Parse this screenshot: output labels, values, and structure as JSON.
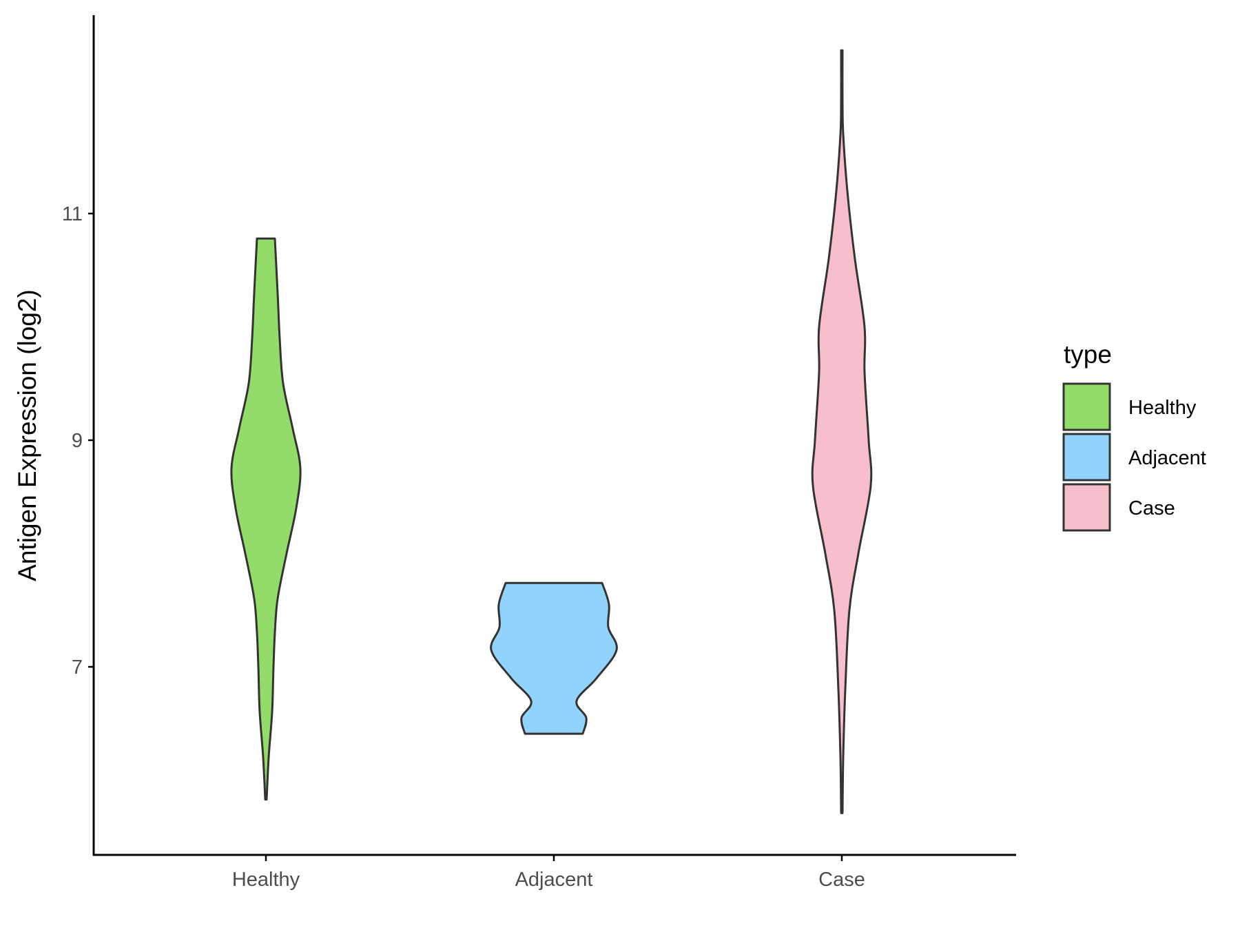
{
  "chart_data": {
    "type": "violin",
    "title": "",
    "xlabel": "",
    "ylabel": "Antigen Expression (log2)",
    "categories": [
      "Healthy",
      "Adjacent",
      "Case"
    ],
    "y_ticks": [
      7,
      9,
      11
    ],
    "ylim": [
      5.5,
      12.9
    ],
    "grid": false,
    "legend": {
      "title": "type",
      "position": "right",
      "entries": [
        "Healthy",
        "Adjacent",
        "Case"
      ]
    },
    "series": [
      {
        "name": "Healthy",
        "color": "#93dc6a",
        "min": 5.83,
        "max": 10.78,
        "profile": [
          [
            5.83,
            0.01
          ],
          [
            6.2,
            0.04
          ],
          [
            6.6,
            0.09
          ],
          [
            7.0,
            0.11
          ],
          [
            7.3,
            0.13
          ],
          [
            7.6,
            0.17
          ],
          [
            8.0,
            0.3
          ],
          [
            8.4,
            0.44
          ],
          [
            8.75,
            0.5
          ],
          [
            9.1,
            0.39
          ],
          [
            9.5,
            0.25
          ],
          [
            9.9,
            0.2
          ],
          [
            10.3,
            0.17
          ],
          [
            10.78,
            0.13
          ]
        ]
      },
      {
        "name": "Adjacent",
        "color": "#92d3fd",
        "min": 6.41,
        "max": 7.74,
        "profile": [
          [
            6.41,
            0.42
          ],
          [
            6.55,
            0.47
          ],
          [
            6.7,
            0.33
          ],
          [
            6.9,
            0.62
          ],
          [
            7.15,
            0.91
          ],
          [
            7.35,
            0.79
          ],
          [
            7.55,
            0.8
          ],
          [
            7.74,
            0.7
          ]
        ]
      },
      {
        "name": "Case",
        "color": "#f7bfcb",
        "min": 5.71,
        "max": 12.44,
        "profile": [
          [
            5.71,
            0.01
          ],
          [
            6.2,
            0.02
          ],
          [
            6.8,
            0.05
          ],
          [
            7.5,
            0.11
          ],
          [
            8.0,
            0.24
          ],
          [
            8.6,
            0.42
          ],
          [
            9.0,
            0.39
          ],
          [
            9.6,
            0.33
          ],
          [
            10.0,
            0.33
          ],
          [
            10.6,
            0.19
          ],
          [
            11.2,
            0.08
          ],
          [
            11.7,
            0.02
          ],
          [
            12.0,
            0.01
          ],
          [
            12.44,
            0.01
          ]
        ]
      }
    ]
  }
}
